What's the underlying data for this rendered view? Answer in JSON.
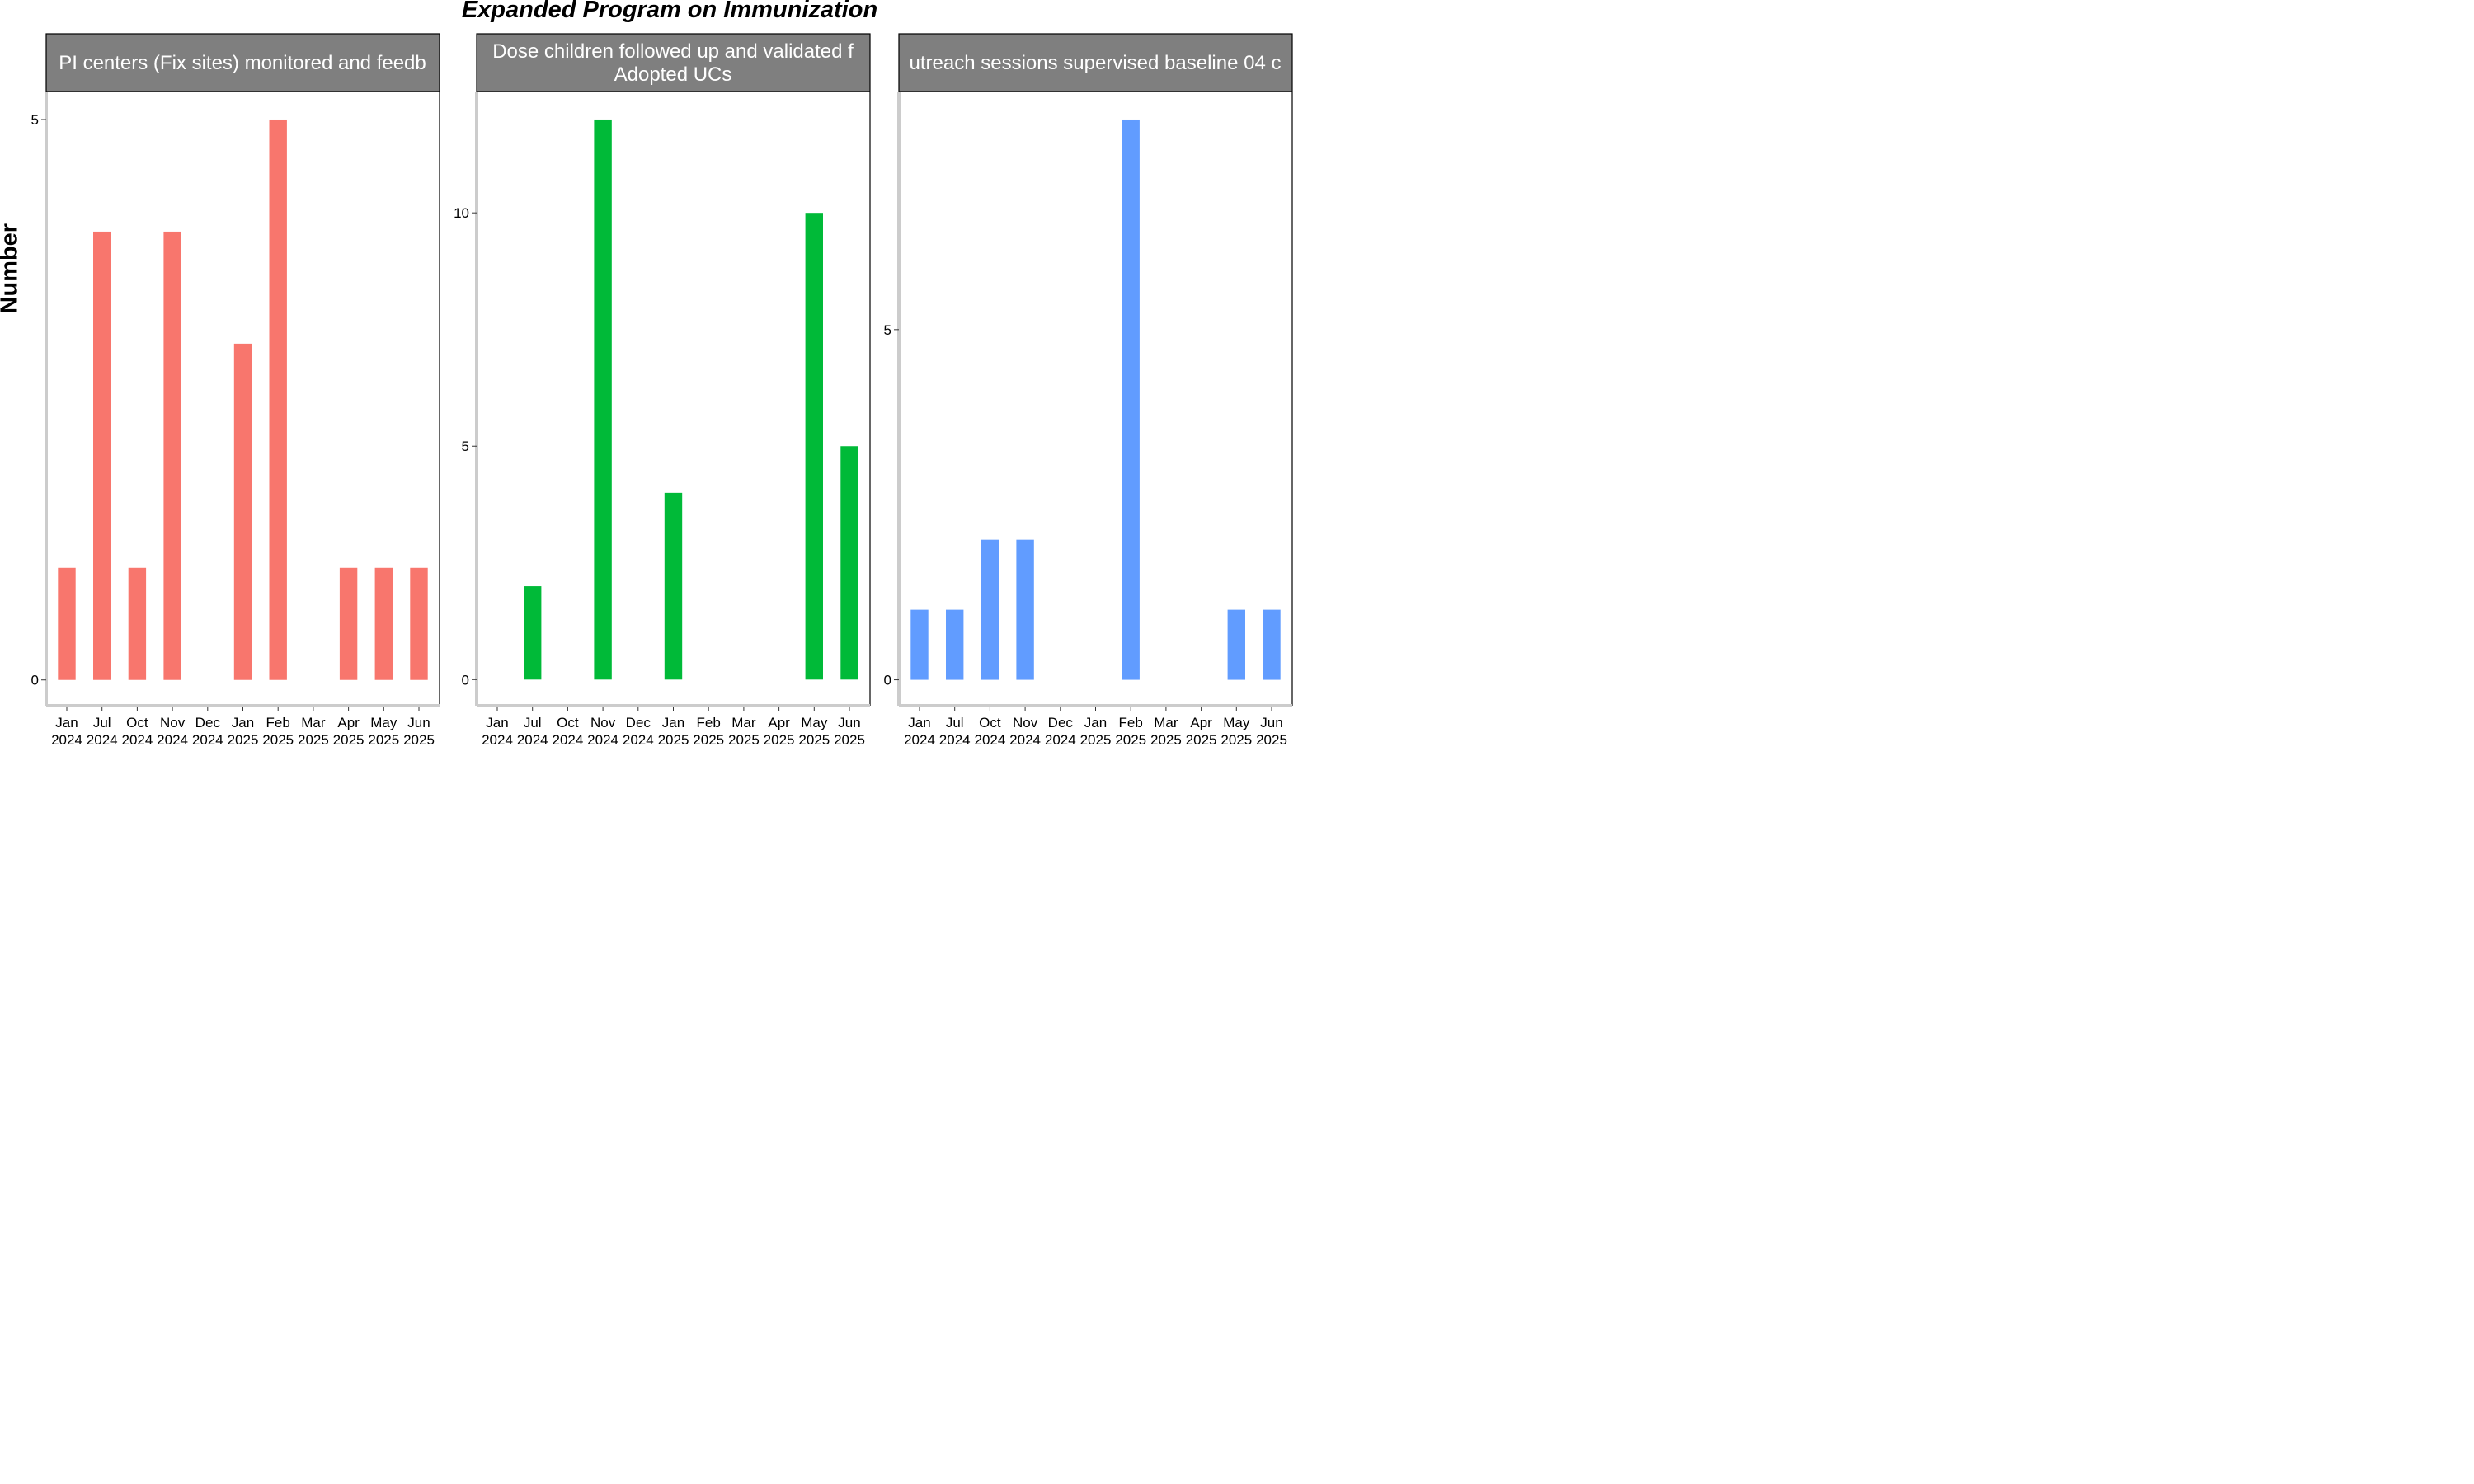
{
  "title": "Expanded Program on Immunization",
  "ylabel": "Number",
  "chart_data": [
    {
      "type": "bar",
      "facet_label": "PI centers (Fix sites) monitored and feedb",
      "color": "#F8766D",
      "categories": [
        "Jan\n2024",
        "Jul\n2024",
        "Oct\n2024",
        "Nov\n2024",
        "Dec\n2024",
        "Jan\n2025",
        "Feb\n2025",
        "Mar\n2025",
        "Apr\n2025",
        "May\n2025",
        "Jun\n2025"
      ],
      "values": [
        1,
        4,
        1,
        4,
        0,
        3,
        5,
        0,
        1,
        1,
        1
      ],
      "yticks": [
        0,
        5
      ],
      "ylim": [
        -0.23,
        5.25
      ]
    },
    {
      "type": "bar",
      "facet_label": "Dose children followed up and validated f\nAdopted UCs",
      "color": "#00BA38",
      "categories": [
        "Jan\n2024",
        "Jul\n2024",
        "Oct\n2024",
        "Nov\n2024",
        "Dec\n2024",
        "Jan\n2025",
        "Feb\n2025",
        "Mar\n2025",
        "Apr\n2025",
        "May\n2025",
        "Jun\n2025"
      ],
      "values": [
        0,
        2,
        0,
        12,
        0,
        4,
        0,
        0,
        0,
        10,
        5
      ],
      "yticks": [
        0,
        5,
        10
      ],
      "ylim": [
        -0.56,
        12.6
      ]
    },
    {
      "type": "bar",
      "facet_label": "utreach sessions supervised baseline 04 c",
      "color": "#619CFF",
      "categories": [
        "Jan\n2024",
        "Jul\n2024",
        "Oct\n2024",
        "Nov\n2024",
        "Dec\n2024",
        "Jan\n2025",
        "Feb\n2025",
        "Mar\n2025",
        "Apr\n2025",
        "May\n2025",
        "Jun\n2025"
      ],
      "values": [
        1,
        1,
        2,
        2,
        0,
        0,
        8,
        0,
        0,
        1,
        1
      ],
      "yticks": [
        0,
        5
      ],
      "ylim": [
        -0.37,
        8.4
      ]
    }
  ]
}
